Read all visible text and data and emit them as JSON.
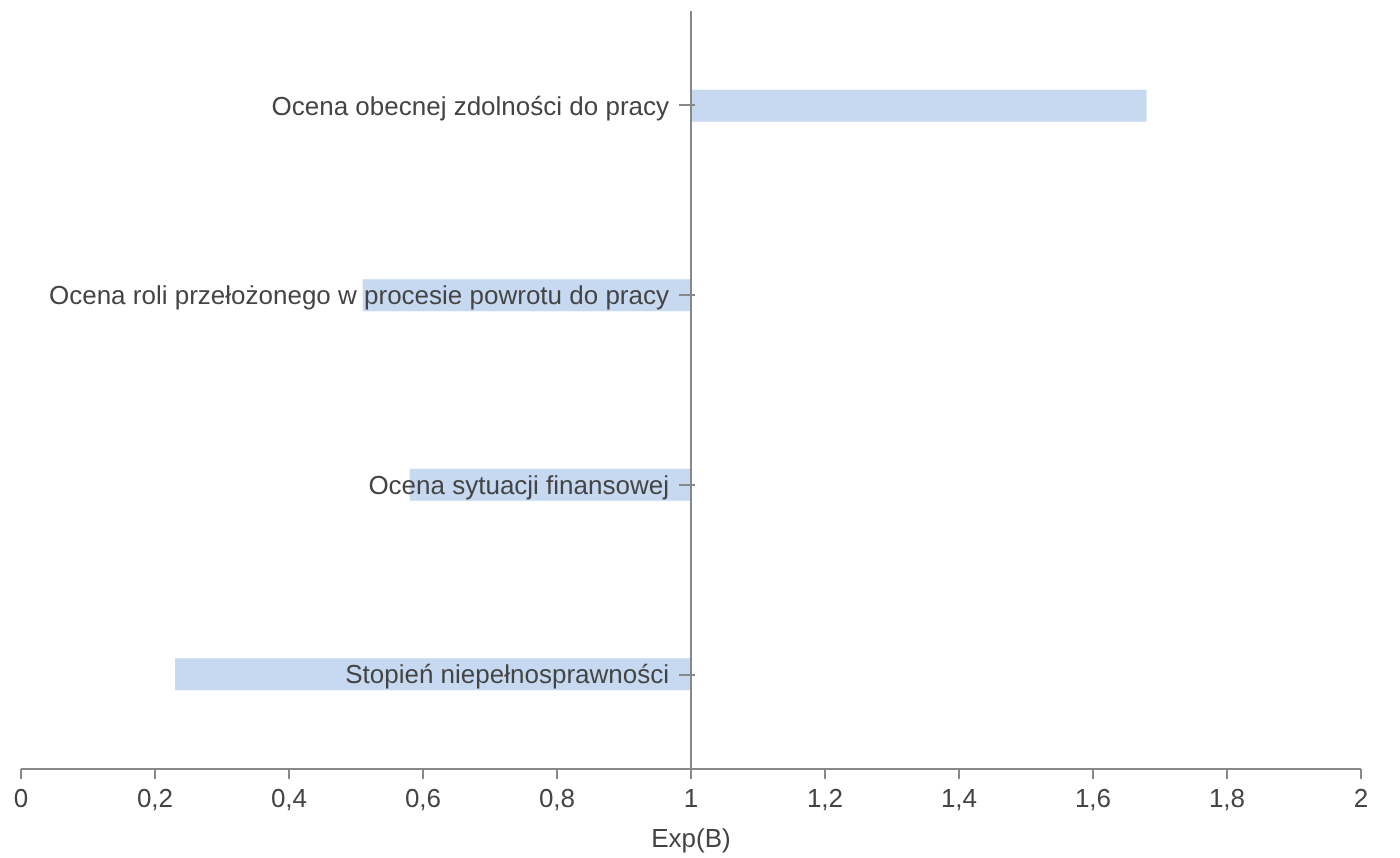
{
  "chart_data": {
    "type": "bar",
    "orientation": "horizontal",
    "xlabel": "Exp(B)",
    "categories": [
      "Ocena obecnej zdolności do pracy",
      "Ocena roli przełożonego w procesie powrotu do pracy",
      "Ocena sytuacji finansowej",
      "Stopień niepełnosprawności"
    ],
    "base": [
      1,
      1,
      1,
      1
    ],
    "values": [
      0.68,
      -0.49,
      -0.42,
      -0.77
    ],
    "colors": [
      "#c6d9f1",
      "#c6d9f1",
      "#c6d9f1",
      "#c6d9f1"
    ],
    "xlim": [
      0,
      2
    ],
    "xticks": [
      0,
      {
        "value": 0.2,
        "label": "0,2"
      },
      {
        "value": 0.4,
        "label": "0,4"
      },
      {
        "value": 0.6,
        "label": "0,6"
      },
      {
        "value": 0.8,
        "label": "0,8"
      },
      1,
      {
        "value": 1.2,
        "label": "1,2"
      },
      {
        "value": 1.4,
        "label": "1,4"
      },
      {
        "value": 1.6,
        "label": "1,6"
      },
      {
        "value": 1.8,
        "label": "1,8"
      },
      2
    ],
    "grid": false
  }
}
